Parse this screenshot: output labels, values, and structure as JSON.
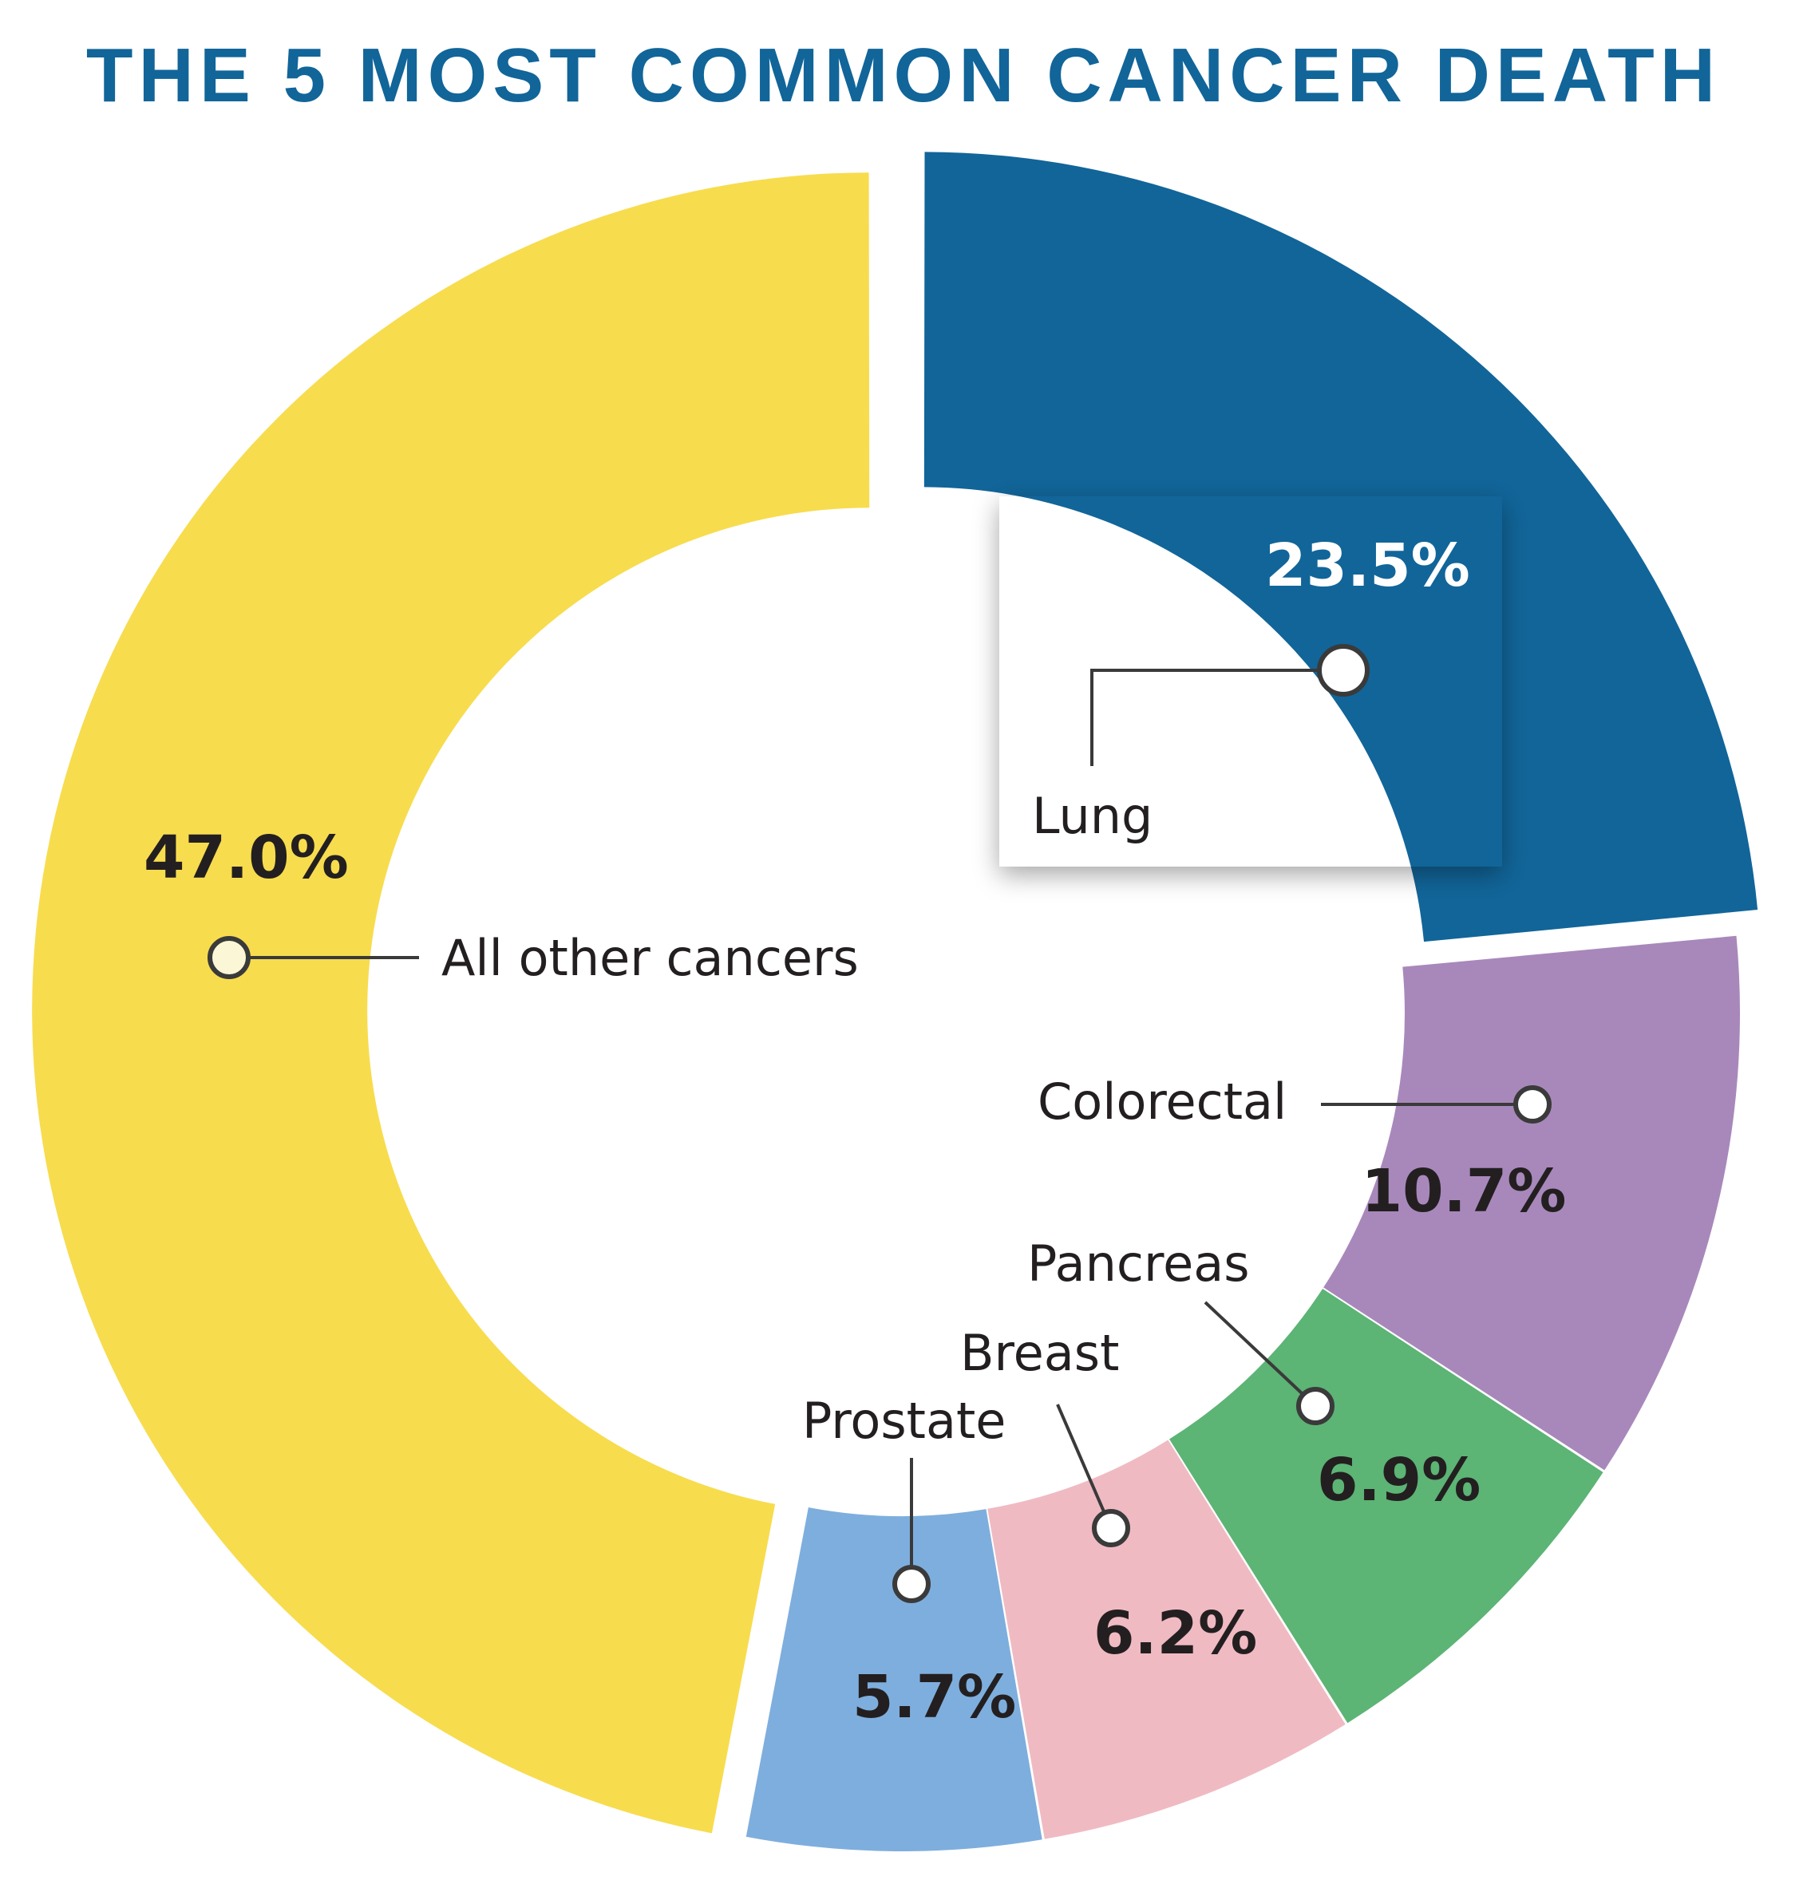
{
  "chart_data": {
    "type": "pie",
    "title": "THE 5 MOST COMMON CANCER DEATH",
    "categories": [
      "Lung",
      "Colorectal",
      "Pancreas",
      "Breast",
      "Prostate",
      "All other cancers"
    ],
    "values": [
      23.5,
      10.7,
      6.9,
      6.2,
      5.7,
      47.0
    ],
    "value_labels": [
      "23.5%",
      "10.7%",
      "6.9%",
      "6.2%",
      "5.7%",
      "47.0%"
    ],
    "colors": [
      "#116599",
      "#a888bb",
      "#5cb475",
      "#f0bac3",
      "#7eaedd",
      "#f7dc4e"
    ],
    "exploded": [
      "Lung",
      "All other cancers"
    ],
    "highlighted": "Lung"
  }
}
